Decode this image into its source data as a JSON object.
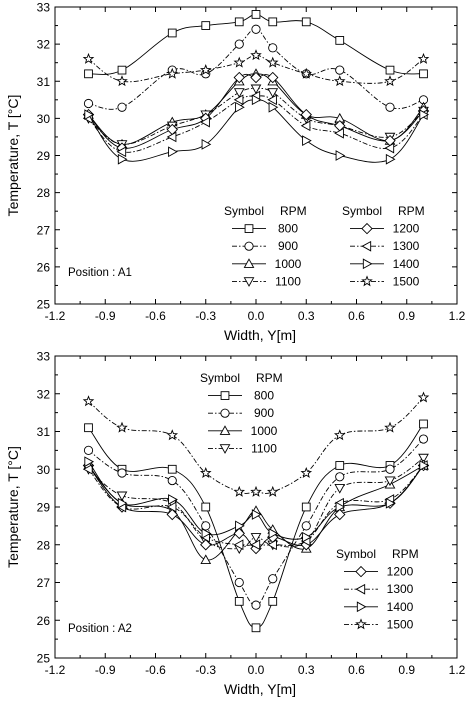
{
  "chart_data": [
    {
      "type": "line",
      "annotation": "Position : A1",
      "xlabel": "Width, Y[m]",
      "ylabel": "Temperature, T [°C]",
      "xlim": [
        -1.2,
        1.2
      ],
      "ylim": [
        25,
        33
      ],
      "xticks": [
        "-1.2",
        "-0.9",
        "-0.6",
        "-0.3",
        "0.0",
        "0.3",
        "0.6",
        "0.9",
        "1.2"
      ],
      "yticks": [
        "25",
        "26",
        "27",
        "28",
        "29",
        "30",
        "31",
        "32",
        "33"
      ],
      "grid": false,
      "legend_header": [
        "Symbol",
        "RPM",
        "Symbol",
        "RPM"
      ],
      "legend_position": "bottom-right",
      "x": [
        -1.0,
        -0.8,
        -0.5,
        -0.3,
        -0.1,
        0.0,
        0.1,
        0.3,
        0.5,
        0.8,
        1.0
      ],
      "series": [
        {
          "name": "800",
          "marker": "square",
          "dash": "solid",
          "values": [
            31.2,
            31.3,
            32.3,
            32.5,
            32.6,
            32.8,
            32.6,
            32.6,
            32.1,
            31.3,
            31.2
          ]
        },
        {
          "name": "900",
          "marker": "circle",
          "dash": "dashdot",
          "values": [
            30.4,
            30.3,
            31.3,
            31.2,
            32.0,
            32.4,
            31.9,
            31.2,
            31.3,
            30.3,
            30.5
          ]
        },
        {
          "name": "1000",
          "marker": "triangle-up",
          "dash": "solid",
          "values": [
            30.1,
            29.3,
            29.9,
            30.1,
            31.0,
            31.2,
            31.0,
            30.1,
            30.0,
            29.4,
            30.3
          ]
        },
        {
          "name": "1100",
          "marker": "triangle-down",
          "dash": "dashdot",
          "values": [
            30.0,
            29.3,
            29.8,
            30.1,
            30.7,
            30.8,
            30.7,
            30.0,
            29.8,
            29.5,
            30.2
          ]
        },
        {
          "name": "1200",
          "marker": "diamond",
          "dash": "solid",
          "values": [
            30.1,
            29.2,
            29.7,
            30.0,
            31.1,
            31.1,
            31.1,
            30.1,
            29.8,
            29.4,
            30.2
          ]
        },
        {
          "name": "1300",
          "marker": "triangle-left",
          "dash": "dashdot",
          "values": [
            30.0,
            29.1,
            29.5,
            29.9,
            30.5,
            30.6,
            30.5,
            29.8,
            29.6,
            29.2,
            30.1
          ]
        },
        {
          "name": "1400",
          "marker": "triangle-right",
          "dash": "solid",
          "values": [
            30.1,
            28.9,
            29.1,
            29.3,
            30.3,
            30.5,
            30.3,
            29.4,
            29.0,
            28.9,
            30.1
          ]
        },
        {
          "name": "1500",
          "marker": "star",
          "dash": "dashdot",
          "values": [
            31.6,
            31.0,
            31.2,
            31.3,
            31.5,
            31.7,
            31.5,
            31.2,
            31.0,
            31.0,
            31.6
          ]
        }
      ]
    },
    {
      "type": "line",
      "annotation": "Position : A2",
      "xlabel": "Width, Y[m]",
      "ylabel": "Temperature, T [°C]",
      "xlim": [
        -1.2,
        1.2
      ],
      "ylim": [
        25,
        33
      ],
      "xticks": [
        "-1.2",
        "-0.9",
        "-0.6",
        "-0.3",
        "0.0",
        "0.3",
        "0.6",
        "0.9",
        "1.2"
      ],
      "yticks": [
        "25",
        "26",
        "27",
        "28",
        "29",
        "30",
        "31",
        "32",
        "33"
      ],
      "grid": false,
      "legend_header": [
        "Symbol",
        "RPM"
      ],
      "legend_position": "split: top-center and bottom-right",
      "x": [
        -1.0,
        -0.8,
        -0.5,
        -0.3,
        -0.1,
        0.0,
        0.1,
        0.3,
        0.5,
        0.8,
        1.0
      ],
      "series": [
        {
          "name": "800",
          "marker": "square",
          "dash": "solid",
          "values": [
            31.1,
            30.0,
            30.0,
            29.0,
            26.5,
            25.8,
            26.5,
            29.0,
            30.1,
            30.1,
            31.2
          ]
        },
        {
          "name": "900",
          "marker": "circle",
          "dash": "dashdot",
          "values": [
            30.5,
            29.9,
            29.7,
            28.5,
            27.0,
            26.4,
            27.1,
            28.5,
            29.8,
            30.0,
            30.8
          ]
        },
        {
          "name": "1000",
          "marker": "triangle-up",
          "dash": "solid",
          "values": [
            30.1,
            29.1,
            28.9,
            27.6,
            28.4,
            28.9,
            28.4,
            27.9,
            29.0,
            29.6,
            30.1
          ]
        },
        {
          "name": "1100",
          "marker": "triangle-down",
          "dash": "dashdot",
          "values": [
            30.0,
            29.3,
            29.1,
            28.1,
            27.9,
            28.2,
            28.0,
            28.1,
            29.5,
            29.7,
            30.3
          ]
        },
        {
          "name": "1200",
          "marker": "diamond",
          "dash": "solid",
          "values": [
            30.1,
            29.0,
            28.8,
            28.0,
            28.3,
            27.9,
            28.2,
            28.0,
            28.8,
            29.1,
            30.1
          ]
        },
        {
          "name": "1300",
          "marker": "triangle-left",
          "dash": "dashdot",
          "values": [
            30.0,
            29.0,
            29.0,
            28.2,
            28.0,
            28.0,
            28.0,
            28.1,
            29.1,
            29.2,
            30.1
          ]
        },
        {
          "name": "1400",
          "marker": "triangle-right",
          "dash": "solid",
          "values": [
            30.2,
            29.1,
            29.2,
            28.3,
            28.5,
            28.8,
            28.3,
            28.2,
            29.0,
            29.1,
            30.1
          ]
        },
        {
          "name": "1500",
          "marker": "star",
          "dash": "dashdot",
          "values": [
            31.8,
            31.1,
            30.9,
            29.9,
            29.4,
            29.4,
            29.4,
            29.9,
            30.9,
            31.1,
            31.9
          ]
        }
      ]
    }
  ]
}
